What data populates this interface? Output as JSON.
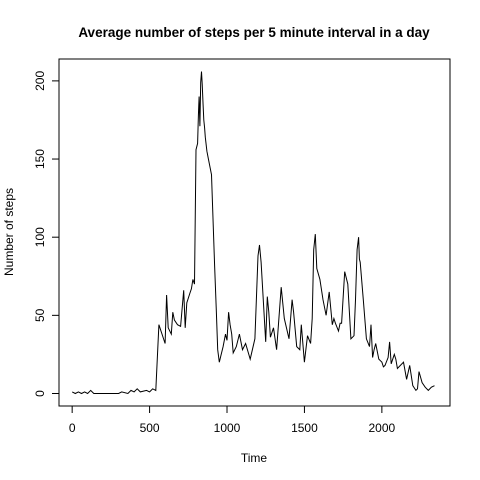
{
  "chart_data": {
    "type": "line",
    "title": "Average number of steps per 5 minute interval in a day",
    "xlabel": "Time",
    "ylabel": "Number of steps",
    "xlim": [
      -85,
      2440
    ],
    "ylim": [
      -8,
      214
    ],
    "xticks": [
      0,
      500,
      1000,
      1500,
      2000
    ],
    "yticks": [
      0,
      50,
      100,
      150,
      200
    ],
    "grid": false,
    "legend": "none",
    "series": [
      {
        "color": "#000000",
        "x": [
          0,
          20,
          40,
          60,
          80,
          100,
          120,
          140,
          200,
          300,
          320,
          360,
          380,
          400,
          420,
          440,
          480,
          500,
          520,
          540,
          560,
          600,
          610,
          620,
          640,
          650,
          660,
          680,
          700,
          720,
          730,
          740,
          760,
          770,
          780,
          790,
          800,
          810,
          815,
          820,
          825,
          830,
          835,
          840,
          845,
          850,
          855,
          860,
          870,
          880,
          900,
          920,
          930,
          940,
          950,
          960,
          975,
          990,
          1000,
          1010,
          1020,
          1030,
          1040,
          1060,
          1080,
          1100,
          1120,
          1150,
          1180,
          1200,
          1210,
          1220,
          1250,
          1260,
          1270,
          1280,
          1300,
          1320,
          1350,
          1370,
          1400,
          1420,
          1430,
          1450,
          1470,
          1480,
          1500,
          1520,
          1540,
          1550,
          1560,
          1570,
          1580,
          1600,
          1620,
          1640,
          1660,
          1680,
          1690,
          1700,
          1720,
          1730,
          1740,
          1760,
          1780,
          1800,
          1820,
          1830,
          1840,
          1850,
          1855,
          1860,
          1880,
          1900,
          1920,
          1930,
          1940,
          1950,
          1960,
          1980,
          2000,
          2010,
          2020,
          2040,
          2050,
          2060,
          2080,
          2090,
          2100,
          2120,
          2140,
          2160,
          2180,
          2200,
          2220,
          2230,
          2240,
          2260,
          2280,
          2300,
          2320,
          2340
        ],
        "y": [
          1,
          0,
          1,
          0,
          1,
          0,
          2,
          0,
          0,
          0,
          1,
          0,
          2,
          1,
          3,
          1,
          2,
          1,
          3,
          2,
          44,
          32,
          63,
          42,
          38,
          52,
          47,
          44,
          43,
          66,
          42,
          58,
          64,
          67,
          73,
          70,
          156,
          160,
          178,
          190,
          171,
          199,
          206,
          198,
          186,
          175,
          170,
          164,
          155,
          150,
          140,
          82,
          55,
          28,
          20,
          24,
          30,
          38,
          34,
          52,
          44,
          38,
          26,
          30,
          38,
          28,
          32,
          22,
          35,
          88,
          95,
          84,
          33,
          62,
          52,
          36,
          42,
          28,
          68,
          48,
          35,
          60,
          52,
          30,
          28,
          44,
          20,
          37,
          32,
          48,
          92,
          102,
          80,
          73,
          60,
          50,
          65,
          44,
          48,
          45,
          40,
          45,
          45,
          78,
          70,
          35,
          37,
          60,
          92,
          100,
          86,
          84,
          60,
          35,
          30,
          44,
          23,
          28,
          32,
          22,
          20,
          17,
          18,
          23,
          33,
          19,
          25,
          22,
          16,
          18,
          20,
          9,
          18,
          5,
          2,
          3,
          14,
          7,
          4,
          2,
          4,
          5
        ]
      }
    ]
  }
}
